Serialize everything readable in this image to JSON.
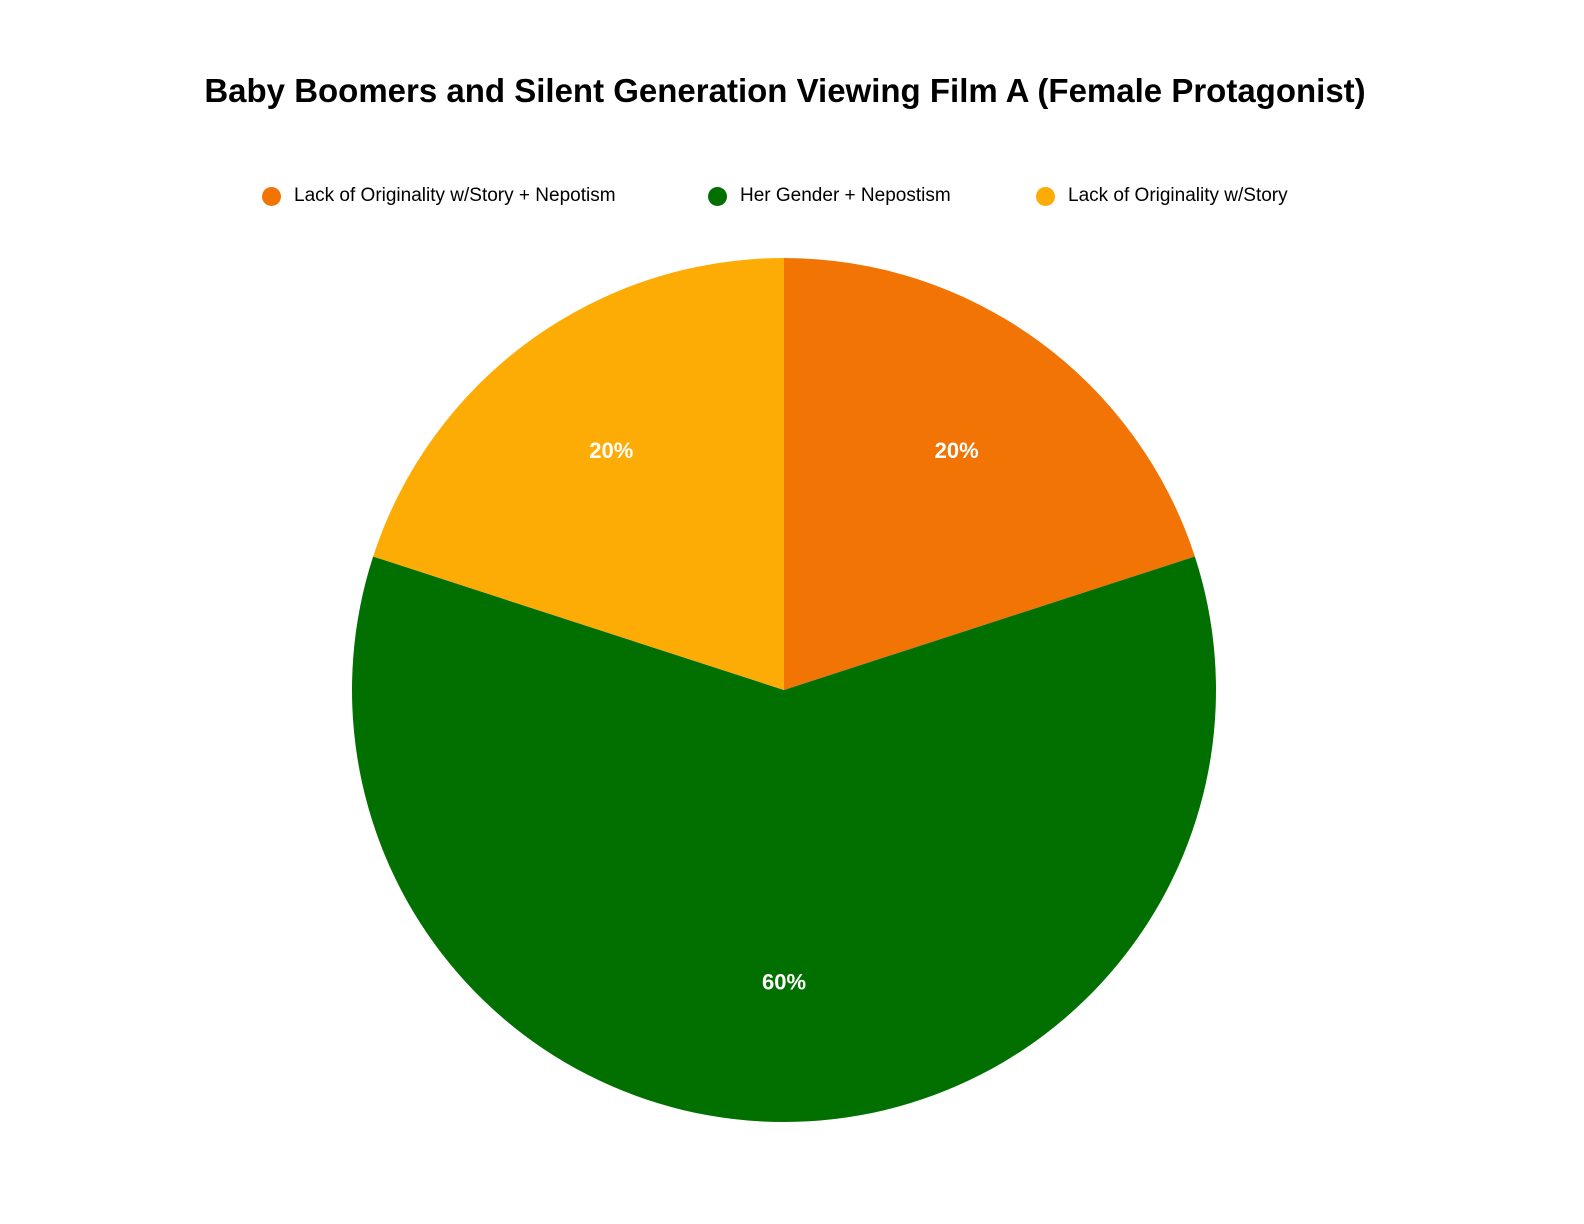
{
  "chart_data": {
    "type": "pie",
    "title": "Baby Boomers and Silent Generation Viewing Film A (Female Protagonist)",
    "legend_position": "top",
    "categories": [
      "Lack of Originality w/Story + Nepotism",
      "Her Gender + Nepostism",
      "Lack of Originality w/Story"
    ],
    "values": [
      20,
      60,
      20
    ],
    "value_labels": [
      "20%",
      "60%",
      "20%"
    ],
    "colors": [
      "#F27405",
      "#027000",
      "#FDAC05"
    ]
  }
}
